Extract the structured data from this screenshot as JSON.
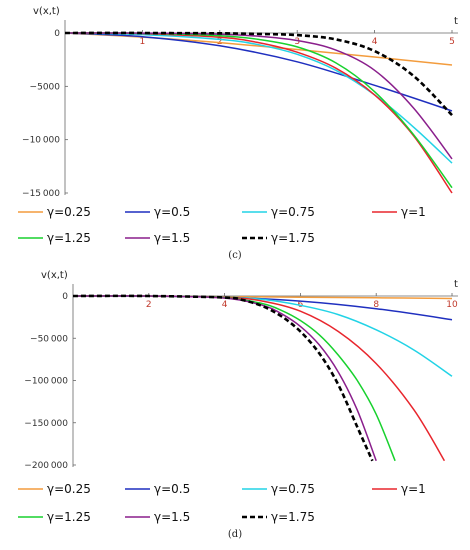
{
  "chart_data": [
    {
      "type": "line",
      "caption": "(c)",
      "ylabel": "v(x,t)",
      "xlabel": "t",
      "xlim": [
        0,
        5
      ],
      "ylim": [
        -15000,
        0
      ],
      "x_ticks": [
        "1",
        "2",
        "3",
        "4",
        "5"
      ],
      "y_ticks": [
        "0",
        "−5000",
        "−10 000",
        "−15 000"
      ],
      "series": [
        {
          "name": "γ=0.25",
          "color": "#f39c3d",
          "dashed": false,
          "x": [
            0,
            1,
            2,
            3,
            4,
            5
          ],
          "y": [
            0,
            -380,
            -900,
            -1550,
            -2250,
            -3000
          ]
        },
        {
          "name": "γ=0.5",
          "color": "#1f2fbf",
          "dashed": false,
          "x": [
            0,
            1,
            2,
            3,
            4,
            5
          ],
          "y": [
            0,
            -350,
            -1200,
            -2700,
            -4900,
            -7300
          ]
        },
        {
          "name": "γ=0.75",
          "color": "#22d3e6",
          "dashed": false,
          "x": [
            0,
            1,
            2,
            2.5,
            3,
            3.5,
            4,
            4.5,
            5
          ],
          "y": [
            0,
            -150,
            -600,
            -1100,
            -2000,
            -3500,
            -5800,
            -8800,
            -12200
          ]
        },
        {
          "name": "γ=1",
          "color": "#e8262d",
          "dashed": false,
          "x": [
            0,
            1,
            2,
            2.5,
            3,
            3.5,
            4,
            4.5,
            5
          ],
          "y": [
            0,
            -60,
            -400,
            -900,
            -1800,
            -3300,
            -5800,
            -9600,
            -15000
          ]
        },
        {
          "name": "γ=1.25",
          "color": "#18d12e",
          "dashed": false,
          "x": [
            0,
            1,
            2,
            2.5,
            3,
            3.5,
            4,
            4.5,
            5
          ],
          "y": [
            0,
            -20,
            -250,
            -600,
            -1300,
            -2800,
            -5500,
            -9500,
            -14500
          ]
        },
        {
          "name": "γ=1.5",
          "color": "#8a1f8c",
          "dashed": false,
          "x": [
            0,
            1,
            2,
            2.5,
            3,
            3.5,
            4,
            4.5,
            5
          ],
          "y": [
            0,
            -5,
            -110,
            -300,
            -700,
            -1600,
            -3500,
            -7000,
            -11800
          ]
        },
        {
          "name": "γ=1.75",
          "color": "#000000",
          "dashed": true,
          "x": [
            0,
            1,
            2,
            2.5,
            3,
            3.5,
            4,
            4.5,
            5
          ],
          "y": [
            0,
            0,
            -30,
            -80,
            -200,
            -600,
            -1700,
            -4000,
            -7700
          ]
        }
      ]
    },
    {
      "type": "line",
      "caption": "(d)",
      "ylabel": "v(x,t)",
      "xlabel": "t",
      "xlim": [
        0,
        10
      ],
      "ylim": [
        -200000,
        0
      ],
      "x_ticks": [
        "2",
        "4",
        "6",
        "8",
        "10"
      ],
      "y_ticks": [
        "0",
        "−50 000",
        "−100 000",
        "−150 000",
        "−200 000"
      ],
      "series": [
        {
          "name": "γ=0.25",
          "color": "#f39c3d",
          "dashed": false,
          "x": [
            0,
            2,
            4,
            6,
            8,
            10
          ],
          "y": [
            0,
            -300,
            -800,
            -1400,
            -2100,
            -2900
          ]
        },
        {
          "name": "γ=0.5",
          "color": "#1f2fbf",
          "dashed": false,
          "x": [
            0,
            2,
            4,
            6,
            8,
            10
          ],
          "y": [
            0,
            -200,
            -1500,
            -6000,
            -15000,
            -28000
          ]
        },
        {
          "name": "γ=0.75",
          "color": "#22d3e6",
          "dashed": false,
          "x": [
            0,
            2,
            4,
            5,
            6,
            7,
            8,
            9,
            10
          ],
          "y": [
            0,
            -100,
            -1200,
            -4000,
            -11000,
            -22000,
            -40000,
            -64000,
            -95000
          ]
        },
        {
          "name": "γ=1",
          "color": "#e8262d",
          "dashed": false,
          "x": [
            0,
            2,
            4,
            5,
            6,
            7,
            8,
            9,
            9.8
          ],
          "y": [
            0,
            -50,
            -1500,
            -6000,
            -18000,
            -42000,
            -80000,
            -135000,
            -195000
          ]
        },
        {
          "name": "γ=1.25",
          "color": "#18d12e",
          "dashed": false,
          "x": [
            0,
            2,
            4,
            5,
            5.5,
            6,
            6.5,
            7,
            7.5,
            8,
            8.5
          ],
          "y": [
            0,
            -20,
            -2000,
            -9000,
            -17000,
            -29000,
            -46000,
            -70000,
            -100000,
            -140000,
            -195000
          ]
        },
        {
          "name": "γ=1.5",
          "color": "#8a1f8c",
          "dashed": false,
          "x": [
            0,
            2,
            4,
            5,
            5.5,
            6,
            6.5,
            7,
            7.5,
            8
          ],
          "y": [
            0,
            -10,
            -2500,
            -11000,
            -21000,
            -36000,
            -58000,
            -90000,
            -135000,
            -195000
          ]
        },
        {
          "name": "γ=1.75",
          "color": "#000000",
          "dashed": true,
          "x": [
            0,
            2,
            4,
            4.5,
            5,
            5.5,
            6,
            6.5,
            7,
            7.5,
            7.9
          ],
          "y": [
            0,
            0,
            -1800,
            -5000,
            -12000,
            -24000,
            -42000,
            -68000,
            -105000,
            -155000,
            -195000
          ]
        }
      ]
    }
  ]
}
